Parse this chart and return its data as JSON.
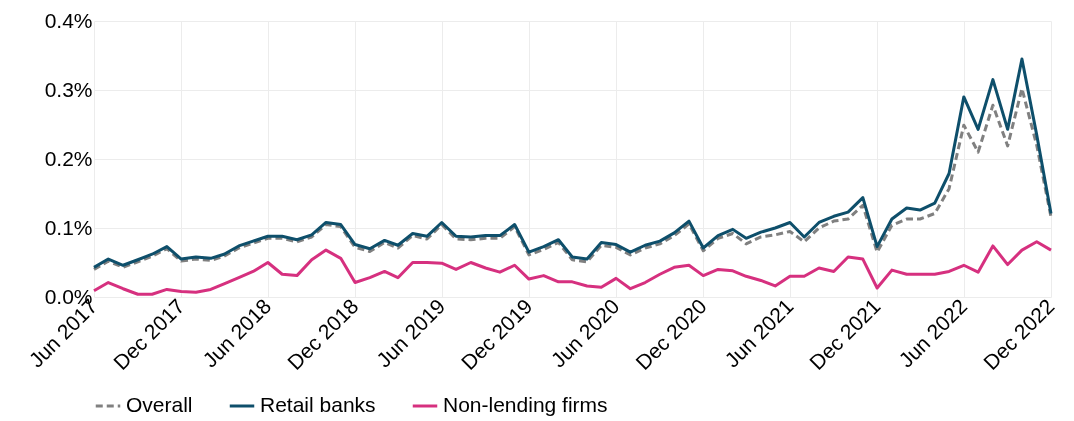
{
  "chart_data": {
    "type": "line",
    "x": [
      "2017-06",
      "2017-07",
      "2017-08",
      "2017-09",
      "2017-10",
      "2017-11",
      "2017-12",
      "2018-01",
      "2018-02",
      "2018-03",
      "2018-04",
      "2018-05",
      "2018-06",
      "2018-07",
      "2018-08",
      "2018-09",
      "2018-10",
      "2018-11",
      "2018-12",
      "2019-01",
      "2019-02",
      "2019-03",
      "2019-04",
      "2019-05",
      "2019-06",
      "2019-07",
      "2019-08",
      "2019-09",
      "2019-10",
      "2019-11",
      "2019-12",
      "2020-01",
      "2020-02",
      "2020-03",
      "2020-04",
      "2020-05",
      "2020-06",
      "2020-07",
      "2020-08",
      "2020-09",
      "2020-10",
      "2020-11",
      "2020-12",
      "2021-01",
      "2021-02",
      "2021-03",
      "2021-04",
      "2021-05",
      "2021-06",
      "2021-07",
      "2021-08",
      "2021-09",
      "2021-10",
      "2021-11",
      "2021-12",
      "2022-01",
      "2022-02",
      "2022-03",
      "2022-04",
      "2022-05",
      "2022-06",
      "2022-07",
      "2022-08",
      "2022-09",
      "2022-10",
      "2022-11",
      "2022-12"
    ],
    "series": [
      {
        "name": "Overall",
        "color": "#808080",
        "line_style": "dashed",
        "values": [
          0.04,
          0.052,
          0.043,
          0.051,
          0.059,
          0.07,
          0.052,
          0.055,
          0.053,
          0.059,
          0.071,
          0.078,
          0.085,
          0.085,
          0.08,
          0.087,
          0.105,
          0.102,
          0.072,
          0.066,
          0.079,
          0.071,
          0.089,
          0.084,
          0.105,
          0.084,
          0.083,
          0.085,
          0.085,
          0.102,
          0.061,
          0.069,
          0.079,
          0.054,
          0.051,
          0.075,
          0.072,
          0.061,
          0.071,
          0.077,
          0.089,
          0.106,
          0.067,
          0.085,
          0.092,
          0.077,
          0.087,
          0.09,
          0.095,
          0.08,
          0.1,
          0.11,
          0.113,
          0.133,
          0.065,
          0.104,
          0.113,
          0.113,
          0.121,
          0.157,
          0.249,
          0.21,
          0.278,
          0.219,
          0.302,
          0.22,
          0.116
        ]
      },
      {
        "name": "Retail banks",
        "color": "#0e4f6b",
        "values": [
          0.043,
          0.055,
          0.046,
          0.054,
          0.062,
          0.073,
          0.055,
          0.058,
          0.056,
          0.062,
          0.074,
          0.081,
          0.088,
          0.088,
          0.083,
          0.09,
          0.108,
          0.105,
          0.076,
          0.07,
          0.082,
          0.075,
          0.092,
          0.088,
          0.108,
          0.088,
          0.087,
          0.089,
          0.089,
          0.105,
          0.065,
          0.073,
          0.083,
          0.058,
          0.055,
          0.079,
          0.076,
          0.065,
          0.075,
          0.081,
          0.093,
          0.11,
          0.071,
          0.089,
          0.098,
          0.085,
          0.094,
          0.1,
          0.108,
          0.087,
          0.108,
          0.117,
          0.123,
          0.144,
          0.073,
          0.113,
          0.129,
          0.126,
          0.136,
          0.179,
          0.29,
          0.243,
          0.315,
          0.243,
          0.345,
          0.235,
          0.121
        ]
      },
      {
        "name": "Non-lending firms",
        "color": "#d6307f",
        "values": [
          0.009,
          0.021,
          0.012,
          0.004,
          0.004,
          0.011,
          0.008,
          0.007,
          0.011,
          0.019,
          0.028,
          0.037,
          0.05,
          0.033,
          0.031,
          0.054,
          0.068,
          0.056,
          0.021,
          0.028,
          0.037,
          0.028,
          0.05,
          0.05,
          0.049,
          0.04,
          0.05,
          0.042,
          0.036,
          0.046,
          0.026,
          0.031,
          0.022,
          0.022,
          0.016,
          0.014,
          0.027,
          0.012,
          0.021,
          0.033,
          0.043,
          0.046,
          0.031,
          0.04,
          0.038,
          0.03,
          0.024,
          0.016,
          0.03,
          0.03,
          0.042,
          0.037,
          0.058,
          0.055,
          0.013,
          0.039,
          0.033,
          0.033,
          0.033,
          0.037,
          0.046,
          0.036,
          0.074,
          0.047,
          0.068,
          0.08,
          0.068
        ]
      }
    ],
    "xlim": [
      "2017-06",
      "2022-12"
    ],
    "xticks": [
      {
        "value": "2017-06",
        "label": "Jun 2017"
      },
      {
        "value": "2017-12",
        "label": "Dec 2017"
      },
      {
        "value": "2018-06",
        "label": "Jun 2018"
      },
      {
        "value": "2018-12",
        "label": "Dec 2018"
      },
      {
        "value": "2019-06",
        "label": "Jun 2019"
      },
      {
        "value": "2019-12",
        "label": "Dec 2019"
      },
      {
        "value": "2020-06",
        "label": "Jun 2020"
      },
      {
        "value": "2020-12",
        "label": "Dec 2020"
      },
      {
        "value": "2021-06",
        "label": "Jun 2021"
      },
      {
        "value": "2021-12",
        "label": "Dec 2021"
      },
      {
        "value": "2022-06",
        "label": "Jun 2022"
      },
      {
        "value": "2022-12",
        "label": "Dec 2022"
      }
    ],
    "ylim": [
      0,
      0.4
    ],
    "yticks": [
      {
        "value": 0,
        "label": "0.0%"
      },
      {
        "value": 0.1,
        "label": "0.1%"
      },
      {
        "value": 0.2,
        "label": "0.2%"
      },
      {
        "value": 0.3,
        "label": "0.3%"
      },
      {
        "value": 0.4,
        "label": "0.4%"
      }
    ],
    "grid": true,
    "legend": "bottom",
    "line_style": "solid",
    "marker": "none"
  }
}
